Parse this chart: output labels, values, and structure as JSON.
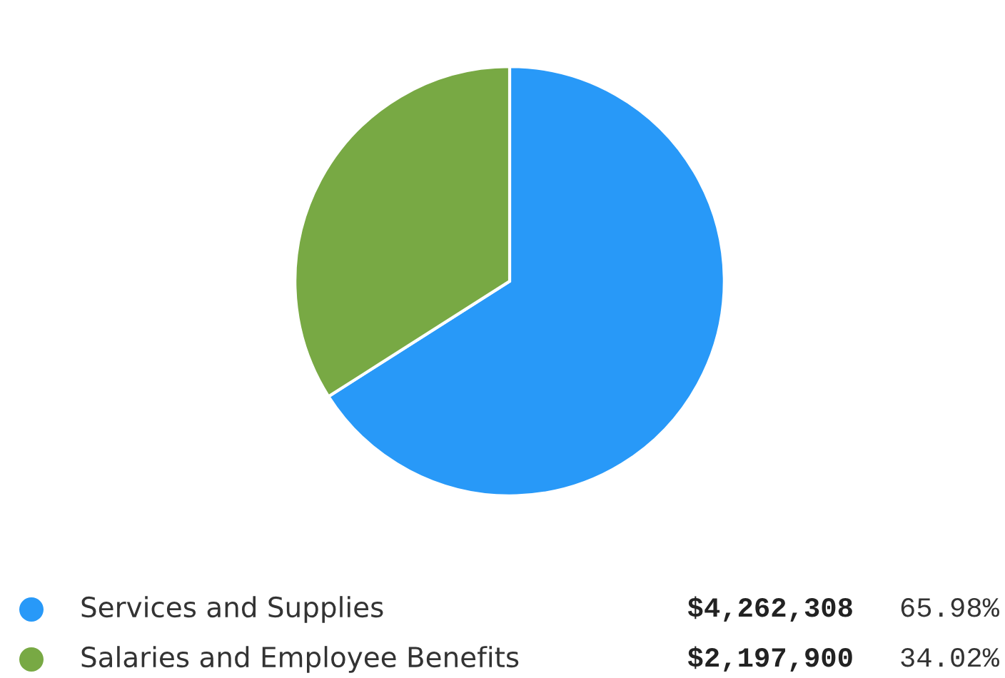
{
  "chart_data": {
    "type": "pie",
    "categories": [
      "Services and Supplies",
      "Salaries and Employee Benefits"
    ],
    "values": [
      4262308,
      2197900
    ],
    "colors": [
      "#2899f8",
      "#78a944"
    ],
    "value_labels": [
      "$4,262,308",
      "$2,197,900"
    ],
    "annotations": [
      "65.98%",
      "34.02%"
    ],
    "legend": "bottom"
  }
}
